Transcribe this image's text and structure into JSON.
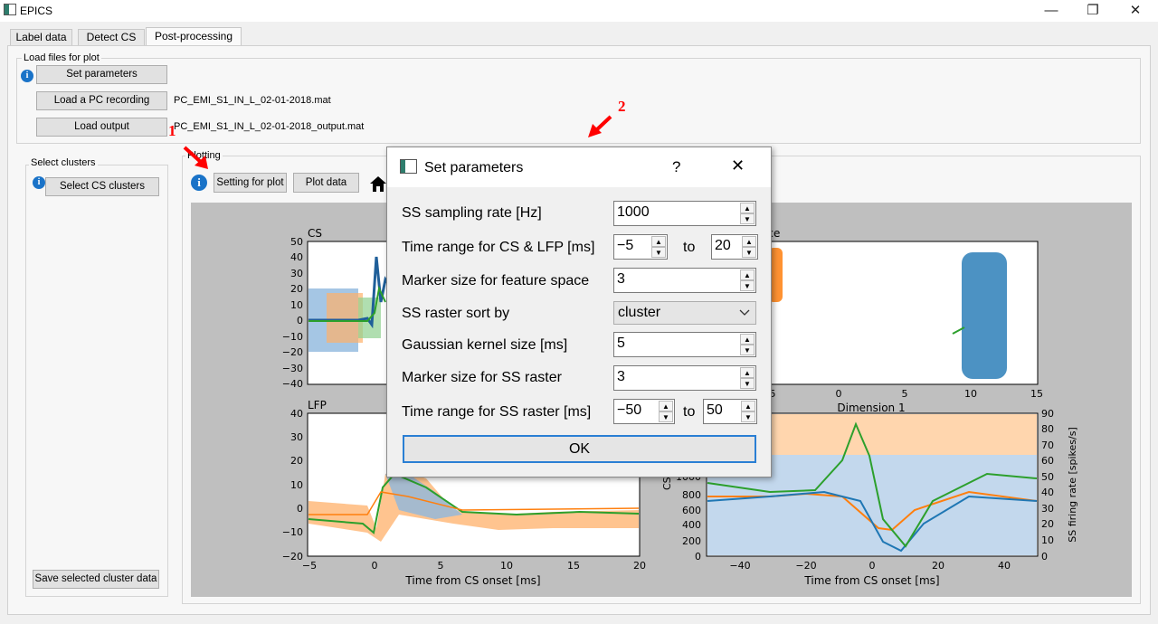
{
  "window": {
    "title": "EPICS",
    "minimize": "—",
    "restore": "❐",
    "close": "✕"
  },
  "tabs": [
    {
      "label": "Label data"
    },
    {
      "label": "Detect CS"
    },
    {
      "label": "Post-processing"
    }
  ],
  "load_files": {
    "group_label": "Load files for plot",
    "info": "i",
    "set_parameters_label": "Set parameters",
    "load_pc_label": "Load a PC recording",
    "pc_file": "PC_EMI_S1_IN_L_02-01-2018.mat",
    "load_output_label": "Load output",
    "output_file": "PC_EMI_S1_IN_L_02-01-2018_output.mat"
  },
  "clusters": {
    "group_label": "Select clusters",
    "select_label": "Select CS clusters",
    "save_label": "Save selected cluster data",
    "info": "i"
  },
  "plotting": {
    "group_label": "Plotting",
    "setting_label": "Setting for plot",
    "plot_label": "Plot data",
    "info": "i",
    "home_icon": "home-icon"
  },
  "annotations": {
    "marker_1": "1",
    "marker_2": "2",
    "color": "#ff0000"
  },
  "dialog": {
    "title": "Set parameters",
    "help": "?",
    "close": "✕",
    "rows": [
      {
        "label": "SS sampling rate [Hz]",
        "value": "1000"
      },
      {
        "label": "Time range for CS & LFP [ms]",
        "from": "−5",
        "to_label": "to",
        "to": "20"
      },
      {
        "label": "Marker size for feature space",
        "value": "3"
      },
      {
        "label": "SS raster sort by",
        "value": "cluster"
      },
      {
        "label": "Gaussian kernel size [ms]",
        "value": "5"
      },
      {
        "label": "Marker size for SS raster",
        "value": "3"
      },
      {
        "label": "Time range for SS raster [ms]",
        "from": "−50",
        "to_label": "to",
        "to": "50"
      }
    ],
    "ok_label": "OK"
  },
  "colors": {
    "blue": "#1f77b4",
    "orange": "#ff7f0e",
    "green": "#2ca02c",
    "accent": "#1a73c8"
  },
  "chart_data": [
    {
      "type": "line",
      "title": "CS",
      "xlabel": "",
      "ylabel": "",
      "yticks": [
        "50",
        "40",
        "30",
        "20",
        "10",
        "0",
        "−10",
        "−20",
        "−30",
        "−40"
      ],
      "ylim": [
        -40,
        50
      ]
    },
    {
      "type": "line",
      "title": "LFP",
      "xlabel": "Time from CS onset [ms]",
      "ylabel": "",
      "xticks": [
        "−5",
        "0",
        "5",
        "10",
        "15",
        "20"
      ],
      "yticks": [
        "40",
        "30",
        "20",
        "10",
        "0",
        "−10",
        "−20"
      ],
      "xlim": [
        -5,
        20
      ],
      "ylim": [
        -20,
        40
      ]
    },
    {
      "type": "scatter",
      "title": "ace",
      "xlabel": "Dimension 1",
      "xticks": [
        "−5",
        "0",
        "5",
        "10",
        "15"
      ],
      "xtick_first_visible": "5",
      "xlim": [
        -7,
        15
      ]
    },
    {
      "type": "line",
      "title": "",
      "xlabel": "Time from CS onset [ms]",
      "ylabel": "CS",
      "ylabel2": "SS firing rate [spikes/s]",
      "xticks": [
        "−40",
        "−20",
        "0",
        "20",
        "40"
      ],
      "yticks_left": [
        "1000",
        "800",
        "600",
        "400",
        "200",
        "0"
      ],
      "yticks_right": [
        "90",
        "80",
        "70",
        "60",
        "50",
        "40",
        "30",
        "20",
        "10",
        "0"
      ],
      "xlim": [
        -50,
        50
      ]
    }
  ]
}
